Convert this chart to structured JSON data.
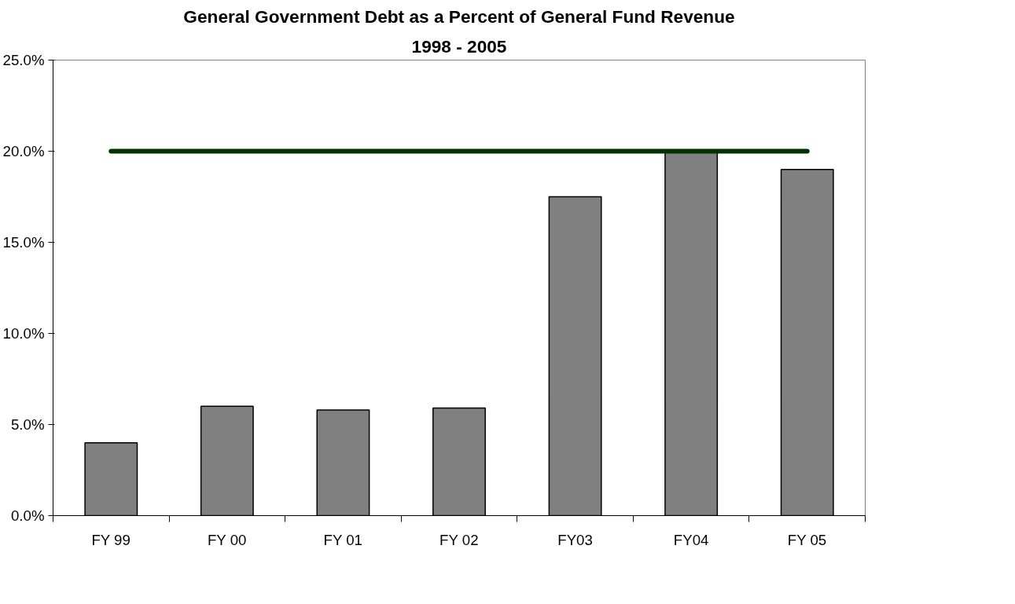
{
  "chart_data": {
    "type": "bar",
    "title": "General Government Debt as a Percent of General Fund Revenue",
    "subtitle": "1998 - 2005",
    "categories": [
      "FY 99",
      "FY 00",
      "FY 01",
      "FY 02",
      "FY03",
      "FY04",
      "FY 05"
    ],
    "series": [
      {
        "color": "#808080",
        "values": [
          4.0,
          6.0,
          5.8,
          5.9,
          17.5,
          20.0,
          19.0
        ]
      },
      {
        "type": "line",
        "color": "#003300",
        "values": [
          20,
          20,
          20,
          20,
          20,
          20,
          20
        ]
      }
    ],
    "ylim": [
      0,
      25
    ],
    "yticks": [
      {
        "value": 0,
        "label": "0.0%"
      },
      {
        "value": 5,
        "label": "5.0%"
      },
      {
        "value": 10,
        "label": "10.0%"
      },
      {
        "value": 15,
        "label": "15.0%"
      },
      {
        "value": 20,
        "label": "20.0%"
      },
      {
        "value": 25,
        "label": "25.0%"
      }
    ],
    "grid": false
  }
}
